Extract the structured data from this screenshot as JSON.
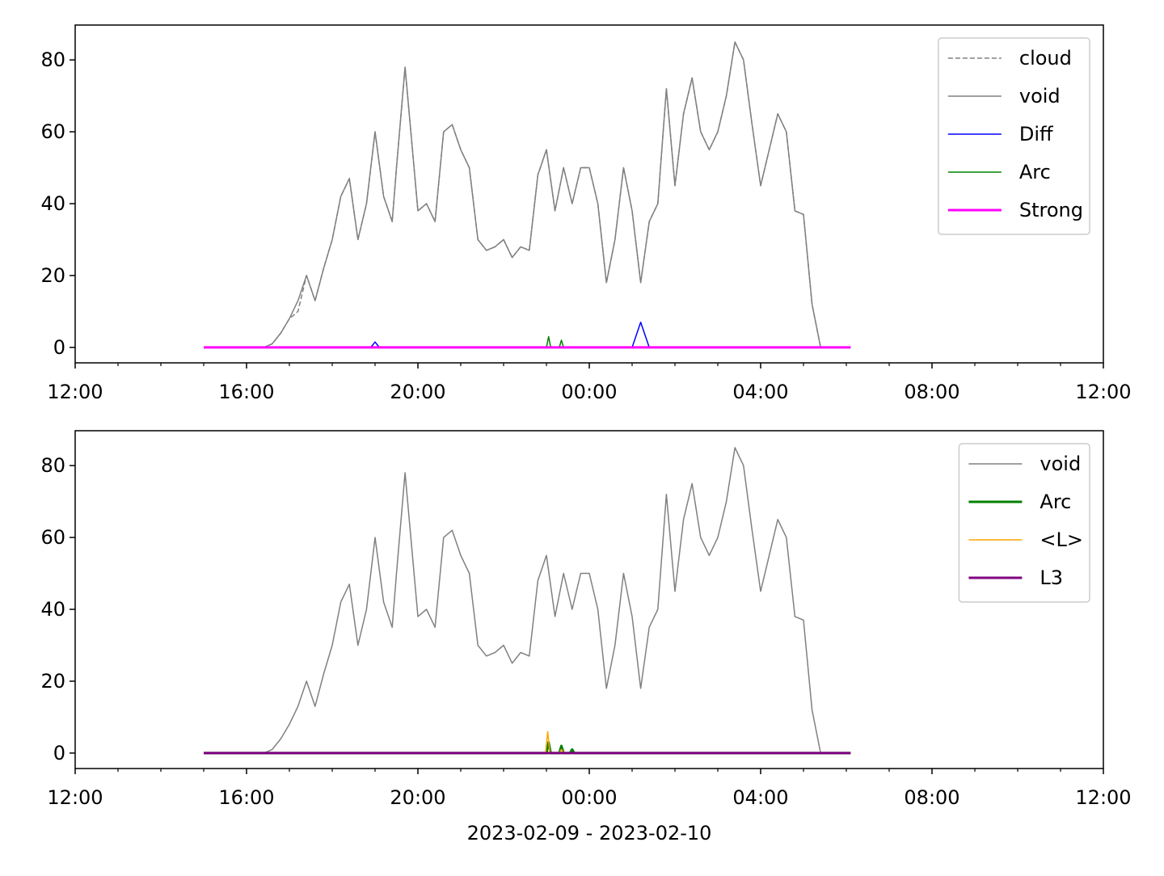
{
  "chart_data": [
    {
      "type": "line",
      "legend": "upper right",
      "xlim": [
        0,
        24
      ],
      "ylim": [
        -4.3,
        89.7
      ],
      "xticks": [
        {
          "value": 0,
          "label": "12:00"
        },
        {
          "value": 4,
          "label": "16:00"
        },
        {
          "value": 8,
          "label": "20:00"
        },
        {
          "value": 12,
          "label": "00:00"
        },
        {
          "value": 16,
          "label": "04:00"
        },
        {
          "value": 20,
          "label": "08:00"
        },
        {
          "value": 24,
          "label": "12:00"
        }
      ],
      "xminorticks": [
        1,
        2,
        3,
        5,
        6,
        7,
        9,
        10,
        11,
        13,
        14,
        15,
        17,
        18,
        19,
        21,
        22,
        23
      ],
      "yticks": [
        0,
        20,
        40,
        60,
        80
      ],
      "series": [
        {
          "name": "cloud",
          "color": "#808080",
          "linestyle": "dashed",
          "linewidth": 1.5,
          "x": [
            3.0,
            4.0,
            4.4,
            4.6,
            4.8,
            5.0,
            5.2,
            5.4,
            5.6,
            5.8,
            6.0,
            6.2,
            6.4,
            6.6,
            6.8,
            7.0,
            7.2,
            7.4,
            7.5,
            7.7,
            8.0,
            8.2,
            8.4,
            8.6,
            8.8,
            9.0,
            9.2,
            9.4,
            9.6,
            9.8,
            10.0,
            10.2,
            10.4,
            10.6,
            10.8,
            11.0,
            11.2,
            11.4,
            11.6,
            11.8,
            12.0,
            12.2,
            12.4,
            12.6,
            12.8,
            13.0,
            13.2,
            13.4,
            13.6,
            13.8,
            14.0,
            14.2,
            14.4,
            14.6,
            14.8,
            15.0,
            15.2,
            15.4,
            15.6,
            15.8,
            16.0,
            16.2,
            16.4,
            16.6,
            16.8,
            17.0,
            17.2,
            17.4
          ],
          "values": [
            0,
            0,
            0,
            1,
            4,
            8,
            10,
            20,
            13,
            22,
            30,
            42,
            47,
            30,
            40,
            60,
            42,
            35,
            50,
            78,
            38,
            40,
            35,
            60,
            62,
            55,
            50,
            30,
            27,
            28,
            30,
            25,
            28,
            27,
            48,
            55,
            38,
            50,
            40,
            50,
            50,
            40,
            18,
            30,
            50,
            38,
            18,
            35,
            40,
            72,
            45,
            65,
            75,
            60,
            55,
            60,
            70,
            85,
            80,
            62,
            45,
            55,
            65,
            60,
            38,
            37,
            12,
            0
          ]
        },
        {
          "name": "void",
          "color": "#808080",
          "linestyle": "solid",
          "linewidth": 1.5,
          "x": [
            3.0,
            4.0,
            4.4,
            4.6,
            4.8,
            5.0,
            5.2,
            5.4,
            5.6,
            5.8,
            6.0,
            6.2,
            6.4,
            6.6,
            6.8,
            7.0,
            7.2,
            7.4,
            7.5,
            7.7,
            8.0,
            8.2,
            8.4,
            8.6,
            8.8,
            9.0,
            9.2,
            9.4,
            9.6,
            9.8,
            10.0,
            10.2,
            10.4,
            10.6,
            10.8,
            11.0,
            11.2,
            11.4,
            11.6,
            11.8,
            12.0,
            12.2,
            12.4,
            12.6,
            12.8,
            13.0,
            13.2,
            13.4,
            13.6,
            13.8,
            14.0,
            14.2,
            14.4,
            14.6,
            14.8,
            15.0,
            15.2,
            15.4,
            15.6,
            15.8,
            16.0,
            16.2,
            16.4,
            16.6,
            16.8,
            17.0,
            17.2,
            17.4
          ],
          "values": [
            0,
            0,
            0,
            1,
            4,
            8,
            13,
            20,
            13,
            22,
            30,
            42,
            47,
            30,
            40,
            60,
            42,
            35,
            50,
            78,
            38,
            40,
            35,
            60,
            62,
            55,
            50,
            30,
            27,
            28,
            30,
            25,
            28,
            27,
            48,
            55,
            38,
            50,
            40,
            50,
            50,
            40,
            18,
            30,
            50,
            38,
            18,
            35,
            40,
            72,
            45,
            65,
            75,
            60,
            55,
            60,
            70,
            85,
            80,
            62,
            45,
            55,
            65,
            60,
            38,
            37,
            12,
            0
          ]
        },
        {
          "name": "Diff",
          "color": "#0000ff",
          "linestyle": "solid",
          "linewidth": 1.5,
          "x": [
            3.0,
            6.9,
            7.0,
            7.1,
            13.0,
            13.2,
            13.4,
            18.1
          ],
          "values": [
            0,
            0,
            1.5,
            0,
            0,
            7,
            0,
            0
          ]
        },
        {
          "name": "Arc",
          "color": "#008000",
          "linestyle": "solid",
          "linewidth": 1.5,
          "x": [
            3.0,
            11.0,
            11.05,
            11.1,
            11.3,
            11.35,
            11.4,
            18.1
          ],
          "values": [
            0,
            0,
            3,
            0,
            0,
            2,
            0,
            0
          ]
        },
        {
          "name": "Strong",
          "color": "#ff00ff",
          "linestyle": "solid",
          "linewidth": 3,
          "x": [
            3.0,
            18.1
          ],
          "values": [
            0,
            0
          ]
        }
      ]
    },
    {
      "type": "line",
      "legend": "upper right",
      "xlabel": "2023-02-09 - 2023-02-10",
      "xlim": [
        0,
        24
      ],
      "ylim": [
        -4.3,
        89.7
      ],
      "xticks": [
        {
          "value": 0,
          "label": "12:00"
        },
        {
          "value": 4,
          "label": "16:00"
        },
        {
          "value": 8,
          "label": "20:00"
        },
        {
          "value": 12,
          "label": "00:00"
        },
        {
          "value": 16,
          "label": "04:00"
        },
        {
          "value": 20,
          "label": "08:00"
        },
        {
          "value": 24,
          "label": "12:00"
        }
      ],
      "xminorticks": [
        1,
        2,
        3,
        5,
        6,
        7,
        9,
        10,
        11,
        13,
        14,
        15,
        17,
        18,
        19,
        21,
        22,
        23
      ],
      "yticks": [
        0,
        20,
        40,
        60,
        80
      ],
      "series": [
        {
          "name": "void",
          "color": "#808080",
          "linestyle": "solid",
          "linewidth": 1.5,
          "x": [
            3.0,
            4.0,
            4.4,
            4.6,
            4.8,
            5.0,
            5.2,
            5.4,
            5.6,
            5.8,
            6.0,
            6.2,
            6.4,
            6.6,
            6.8,
            7.0,
            7.2,
            7.4,
            7.5,
            7.7,
            8.0,
            8.2,
            8.4,
            8.6,
            8.8,
            9.0,
            9.2,
            9.4,
            9.6,
            9.8,
            10.0,
            10.2,
            10.4,
            10.6,
            10.8,
            11.0,
            11.2,
            11.4,
            11.6,
            11.8,
            12.0,
            12.2,
            12.4,
            12.6,
            12.8,
            13.0,
            13.2,
            13.4,
            13.6,
            13.8,
            14.0,
            14.2,
            14.4,
            14.6,
            14.8,
            15.0,
            15.2,
            15.4,
            15.6,
            15.8,
            16.0,
            16.2,
            16.4,
            16.6,
            16.8,
            17.0,
            17.2,
            17.4
          ],
          "values": [
            0,
            0,
            0,
            1,
            4,
            8,
            13,
            20,
            13,
            22,
            30,
            42,
            47,
            30,
            40,
            60,
            42,
            35,
            50,
            78,
            38,
            40,
            35,
            60,
            62,
            55,
            50,
            30,
            27,
            28,
            30,
            25,
            28,
            27,
            48,
            55,
            38,
            50,
            40,
            50,
            50,
            40,
            18,
            30,
            50,
            38,
            18,
            35,
            40,
            72,
            45,
            65,
            75,
            60,
            55,
            60,
            70,
            85,
            80,
            62,
            45,
            55,
            65,
            60,
            38,
            37,
            12,
            0
          ]
        },
        {
          "name": "Arc",
          "color": "#008000",
          "linestyle": "solid",
          "linewidth": 3,
          "x": [
            3.0,
            11.0,
            11.05,
            11.1,
            11.3,
            11.35,
            11.4,
            11.55,
            11.6,
            11.65,
            18.1
          ],
          "values": [
            0,
            0,
            3,
            0,
            0,
            2,
            0,
            0,
            1,
            0,
            0
          ]
        },
        {
          "name": "<L>",
          "color": "#ffa500",
          "linestyle": "solid",
          "linewidth": 1.5,
          "x": [
            3.0,
            10.98,
            11.03,
            11.08,
            11.3,
            11.35,
            11.4,
            18.1
          ],
          "values": [
            0,
            0,
            6,
            0,
            0,
            1,
            0,
            0
          ]
        },
        {
          "name": "L3",
          "color": "#800080",
          "linestyle": "solid",
          "linewidth": 3,
          "x": [
            3.0,
            18.1
          ],
          "values": [
            0,
            0
          ]
        }
      ]
    }
  ]
}
